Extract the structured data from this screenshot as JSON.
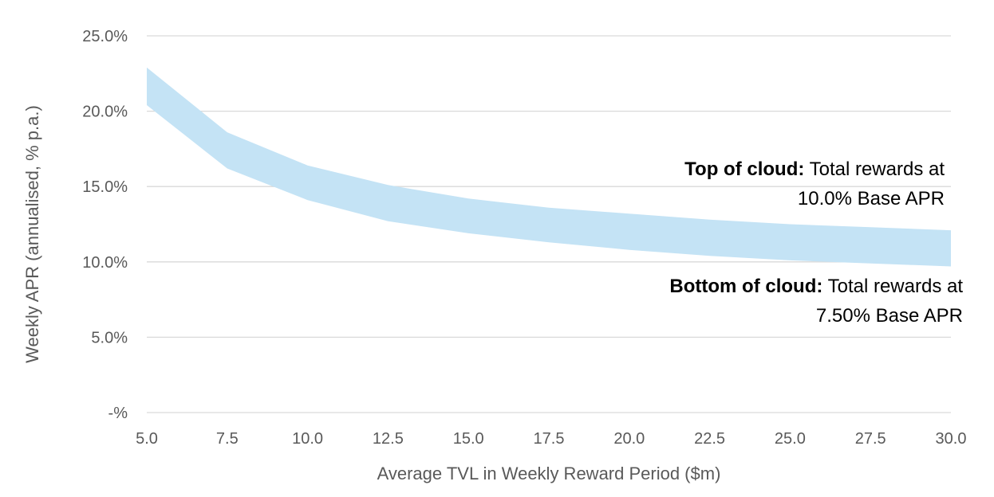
{
  "chart_data": {
    "type": "area",
    "x_tick_labels": [
      "5.0",
      "7.5",
      "10.0",
      "12.5",
      "15.0",
      "17.5",
      "20.0",
      "22.5",
      "25.0",
      "27.5",
      "30.0"
    ],
    "y_tick_labels": [
      "-%",
      "5.0%",
      "10.0%",
      "15.0%",
      "20.0%",
      "25.0%"
    ],
    "xlabel": "Average TVL in Weekly Reward Period ($m)",
    "ylabel": "Weekly APR (annualised, % p.a.)",
    "xlim": [
      5,
      30
    ],
    "ylim": [
      0,
      25
    ],
    "grid": "horizontal",
    "x": [
      5.0,
      7.5,
      10.0,
      12.5,
      15.0,
      17.5,
      20.0,
      22.5,
      25.0,
      27.5,
      30.0
    ],
    "series": [
      {
        "values": [
          22.9,
          18.6,
          16.4,
          15.1,
          14.2,
          13.6,
          13.2,
          12.8,
          12.5,
          12.3,
          12.1
        ]
      },
      {
        "values": [
          20.4,
          16.2,
          14.1,
          12.7,
          11.9,
          11.3,
          10.8,
          10.4,
          10.1,
          9.9,
          9.7
        ]
      }
    ],
    "band_color": "#C4E3F5",
    "annotations": [
      {
        "bold": "Top of cloud:",
        "text_line1": " Total rewards at",
        "text_line2": "10.0% Base APR"
      },
      {
        "bold": "Bottom of cloud:",
        "text_line1": " Total rewards at",
        "text_line2": "7.50% Base APR"
      }
    ]
  }
}
